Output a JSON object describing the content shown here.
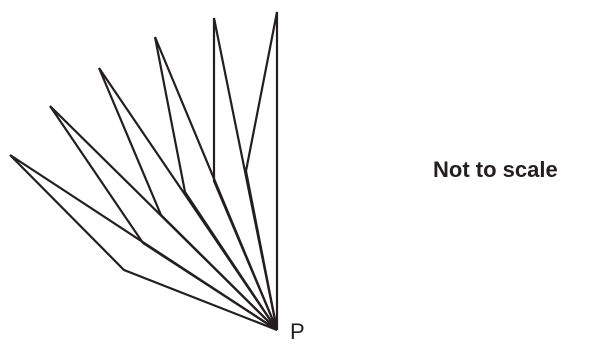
{
  "point_label": "P",
  "scale_note": "Not to scale",
  "stroke_color": "#231f20",
  "text_color": "#231f20"
}
